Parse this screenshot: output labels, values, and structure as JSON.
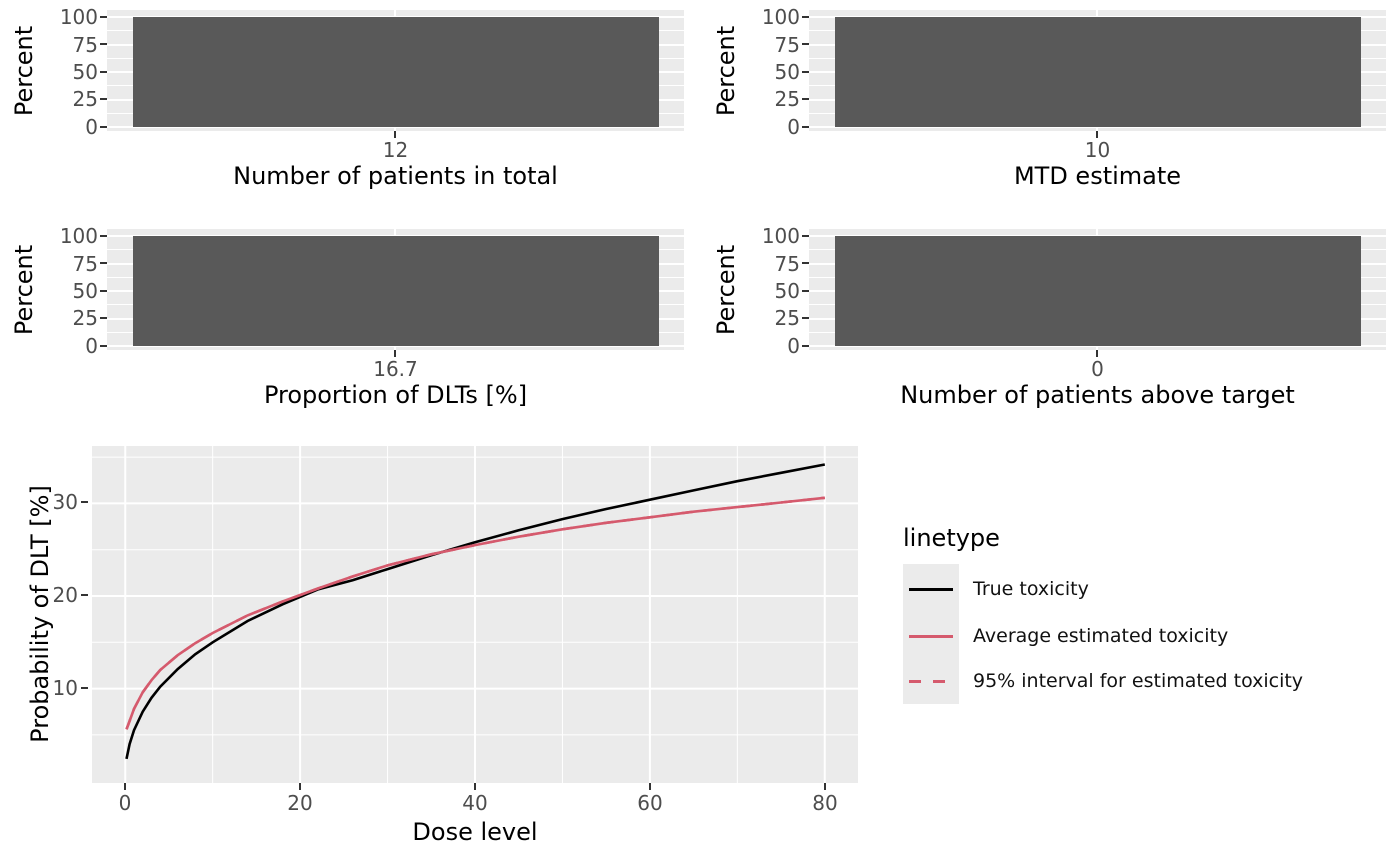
{
  "colors": {
    "bar_fill": "#595959",
    "panel_background": "#EBEBEB",
    "gridline": "#FFFFFF",
    "tick_text": "#4D4D4D",
    "title_text": "#000000",
    "tick_mark": "#333333",
    "legend_key_background": "#EBEBEB",
    "true_toxicity_line": "#000000",
    "estimated_toxicity_line": "#D55A6D"
  },
  "chart_data": [
    {
      "type": "bar",
      "xlabel": "Number of patients in total",
      "ylabel": "Percent",
      "categories": [
        "12"
      ],
      "values": [
        100
      ],
      "ylim": [
        0,
        100
      ],
      "yticks_display": [
        "100",
        "75",
        "50",
        "25",
        "0"
      ],
      "grid": true
    },
    {
      "type": "bar",
      "xlabel": "MTD estimate",
      "ylabel": "Percent",
      "categories": [
        "10"
      ],
      "values": [
        100
      ],
      "ylim": [
        0,
        100
      ],
      "yticks_display": [
        "100",
        "75",
        "50",
        "25",
        "0"
      ],
      "grid": true
    },
    {
      "type": "bar",
      "xlabel": "Proportion of DLTs [%]",
      "ylabel": "Percent",
      "categories": [
        "16.7"
      ],
      "values": [
        100
      ],
      "ylim": [
        0,
        100
      ],
      "yticks_display": [
        "100",
        "75",
        "50",
        "25",
        "0"
      ],
      "grid": true
    },
    {
      "type": "bar",
      "xlabel": "Number of patients above target",
      "ylabel": "Percent",
      "categories": [
        "0"
      ],
      "values": [
        100
      ],
      "ylim": [
        0,
        100
      ],
      "yticks_display": [
        "100",
        "75",
        "50",
        "25",
        "0"
      ],
      "grid": true
    },
    {
      "type": "line",
      "xlabel": "Dose level",
      "ylabel": "Probability of DLT [%]",
      "xlim": [
        -3.8,
        83.8
      ],
      "ylim": [
        -0.2,
        36.2
      ],
      "xticks": [
        0,
        20,
        40,
        60,
        80
      ],
      "yticks": [
        30,
        20,
        10
      ],
      "xtick_labels": [
        "0",
        "20",
        "40",
        "60",
        "80"
      ],
      "ytick_labels": [
        "30",
        "20",
        "10"
      ],
      "grid": true,
      "legend": {
        "title": "linetype",
        "position": "right"
      },
      "x": [
        0.15,
        0.5,
        1,
        2,
        3,
        4,
        6,
        8,
        10,
        14,
        18,
        22,
        26,
        30,
        35,
        40,
        45,
        50,
        55,
        60,
        65,
        70,
        75,
        80
      ],
      "series": [
        {
          "name": "True toxicity",
          "color": "#000000",
          "linetype": "solid",
          "values": [
            2.4,
            4.0,
            5.5,
            7.5,
            9.0,
            10.2,
            12.1,
            13.7,
            15.0,
            17.3,
            19.1,
            20.7,
            21.7,
            22.9,
            24.4,
            25.8,
            27.1,
            28.3,
            29.4,
            30.4,
            31.4,
            32.4,
            33.3,
            34.2
          ]
        },
        {
          "name": "Average estimated toxicity",
          "color": "#D55A6D",
          "linetype": "solid",
          "values": [
            5.6,
            6.5,
            7.8,
            9.6,
            10.9,
            12.0,
            13.6,
            14.9,
            16.0,
            17.9,
            19.4,
            20.8,
            22.1,
            23.3,
            24.5,
            25.5,
            26.4,
            27.2,
            27.9,
            28.5,
            29.1,
            29.6,
            30.1,
            30.6
          ]
        },
        {
          "name": "95% interval for estimated toxicity",
          "color": "#D55A6D",
          "linetype": "dashed",
          "values": [
            5.6,
            6.5,
            7.8,
            9.6,
            10.9,
            12.0,
            13.6,
            14.9,
            16.0,
            17.9,
            19.4,
            20.8,
            22.1,
            23.3,
            24.5,
            25.5,
            26.4,
            27.2,
            27.9,
            28.5,
            29.1,
            29.6,
            30.1,
            30.6
          ]
        }
      ]
    }
  ]
}
